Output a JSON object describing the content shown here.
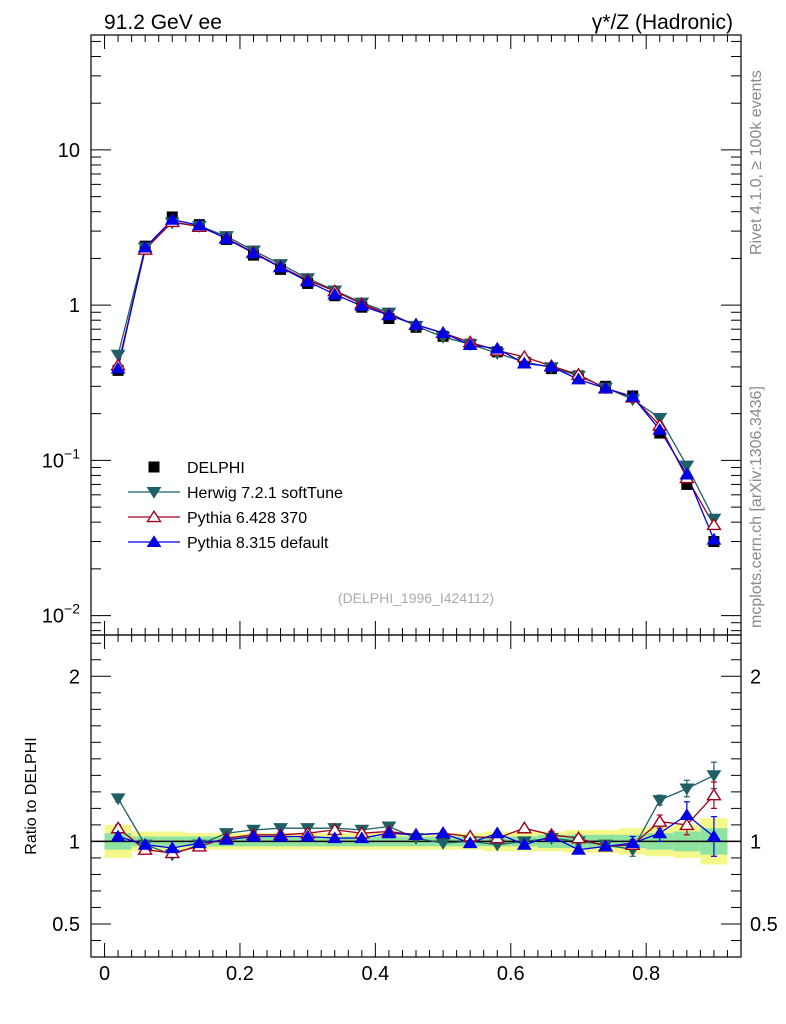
{
  "chart_data": {
    "type": "scatter",
    "title_left": "91.2 GeV ee",
    "title_right": "γ*/Z (Hadronic)",
    "side_label_top": "Rivet 4.1.0, ≥ 100k events",
    "side_label_bottom": "mcplots.cern.ch [arXiv:1306.3436]",
    "analysis_label": "(DELPHI_1996_I424112)",
    "ylabel_ratio": "Ratio to DELPHI",
    "xlim": [
      -0.02,
      0.94
    ],
    "ylim_main": [
      0.0075,
      55
    ],
    "ylim_ratio": [
      0.3,
      2.25
    ],
    "x_ticks": [
      0,
      0.2,
      0.4,
      0.6,
      0.8
    ],
    "x_tick_labels": [
      "0",
      "0.2",
      "0.4",
      "0.6",
      "0.8"
    ],
    "y_ticks_main": [
      0.01,
      0.1,
      1,
      10
    ],
    "y_tick_labels_main": [
      "10^-2",
      "10^-1",
      "1",
      "10"
    ],
    "y_ticks_ratio": [
      0.5,
      1,
      2
    ],
    "y_tick_labels_ratio": [
      "0.5",
      "1",
      "2"
    ],
    "x": [
      0.02,
      0.06,
      0.1,
      0.14,
      0.18,
      0.22,
      0.26,
      0.3,
      0.34,
      0.38,
      0.42,
      0.46,
      0.5,
      0.54,
      0.58,
      0.62,
      0.66,
      0.7,
      0.74,
      0.78,
      0.82,
      0.86,
      0.9
    ],
    "data": {
      "name": "DELPHI",
      "values": [
        0.38,
        2.4,
        3.7,
        3.3,
        2.65,
        2.1,
        1.7,
        1.38,
        1.15,
        0.97,
        0.82,
        0.72,
        0.63,
        0.56,
        0.5,
        0.43,
        0.39,
        0.35,
        0.3,
        0.26,
        0.15,
        0.07,
        0.03
      ],
      "band_inner": [
        0.05,
        0.03,
        0.03,
        0.03,
        0.03,
        0.03,
        0.03,
        0.03,
        0.03,
        0.03,
        0.03,
        0.03,
        0.03,
        0.03,
        0.03,
        0.03,
        0.04,
        0.04,
        0.04,
        0.04,
        0.05,
        0.06,
        0.08
      ],
      "band_outer": [
        0.1,
        0.06,
        0.06,
        0.05,
        0.05,
        0.05,
        0.05,
        0.05,
        0.05,
        0.05,
        0.05,
        0.05,
        0.05,
        0.05,
        0.06,
        0.06,
        0.06,
        0.07,
        0.07,
        0.08,
        0.09,
        0.1,
        0.14
      ]
    },
    "series": [
      {
        "name": "Herwig 7.2.1 softTune",
        "color": "#1f5f66",
        "marker": "triangle-down-filled",
        "ratio": [
          1.26,
          0.98,
          0.92,
          0.98,
          1.05,
          1.07,
          1.08,
          1.08,
          1.08,
          1.07,
          1.09,
          1.02,
          0.99,
          1.0,
          0.98,
          1.0,
          1.02,
          1.0,
          0.98,
          0.95,
          1.25,
          1.32,
          1.4
        ],
        "ratio_err": [
          0.02,
          0.01,
          0.01,
          0.01,
          0.01,
          0.01,
          0.01,
          0.01,
          0.01,
          0.01,
          0.01,
          0.01,
          0.01,
          0.01,
          0.01,
          0.01,
          0.02,
          0.02,
          0.02,
          0.04,
          0.03,
          0.05,
          0.08
        ]
      },
      {
        "name": "Pythia 6.428 370",
        "color": "#a3001e",
        "marker": "triangle-up-open",
        "ratio": [
          1.08,
          0.95,
          0.93,
          0.97,
          1.02,
          1.04,
          1.04,
          1.05,
          1.07,
          1.05,
          1.06,
          1.04,
          1.05,
          1.03,
          1.02,
          1.08,
          1.04,
          1.02,
          0.97,
          0.98,
          1.12,
          1.1,
          1.28
        ],
        "ratio_err": [
          0.02,
          0.01,
          0.01,
          0.01,
          0.01,
          0.01,
          0.01,
          0.01,
          0.01,
          0.01,
          0.01,
          0.01,
          0.01,
          0.01,
          0.01,
          0.01,
          0.02,
          0.02,
          0.02,
          0.03,
          0.04,
          0.06,
          0.08
        ]
      },
      {
        "name": "Pythia 8.315 default",
        "color": "#0000e6",
        "marker": "triangle-up-filled",
        "ratio": [
          1.03,
          0.98,
          0.96,
          0.99,
          1.01,
          1.03,
          1.03,
          1.03,
          1.02,
          1.02,
          1.05,
          1.04,
          1.05,
          0.99,
          1.05,
          0.98,
          1.03,
          0.95,
          0.97,
          0.99,
          1.05,
          1.16,
          1.03
        ],
        "ratio_err": [
          0.02,
          0.01,
          0.01,
          0.01,
          0.01,
          0.01,
          0.01,
          0.01,
          0.01,
          0.01,
          0.01,
          0.01,
          0.01,
          0.01,
          0.01,
          0.02,
          0.02,
          0.02,
          0.02,
          0.04,
          0.05,
          0.08,
          0.12
        ]
      }
    ],
    "legend": [
      "DELPHI",
      "Herwig 7.2.1 softTune",
      "Pythia 6.428 370",
      "Pythia 8.315 default"
    ]
  }
}
